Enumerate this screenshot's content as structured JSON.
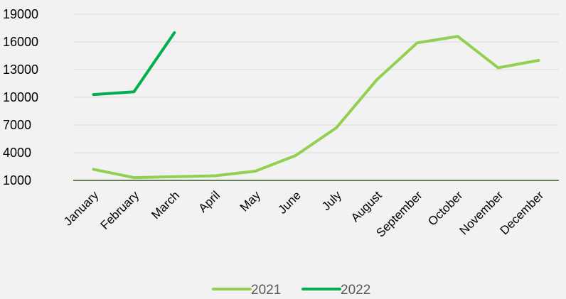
{
  "chart_data": {
    "type": "line",
    "title": "",
    "xlabel": "",
    "ylabel": "",
    "categories": [
      "January",
      "February",
      "March",
      "April",
      "May",
      "June",
      "July",
      "August",
      "September",
      "October",
      "November",
      "December"
    ],
    "yticks": [
      "19000",
      "16000",
      "13000",
      "10000",
      "7000",
      "4000",
      "1000"
    ],
    "ylim": [
      1000,
      19000
    ],
    "grid": true,
    "legend_position": "bottom",
    "series": [
      {
        "name": "2021",
        "color": "#92d050",
        "values": [
          2200,
          1300,
          1400,
          1500,
          2000,
          3700,
          6700,
          11900,
          15900,
          16600,
          13200,
          14000
        ]
      },
      {
        "name": "2022",
        "color": "#00b050",
        "values": [
          10300,
          10600,
          17000,
          null,
          null,
          null,
          null,
          null,
          null,
          null,
          null,
          null
        ]
      }
    ],
    "colors": {
      "background": "#f2f2f2",
      "gridline": "#d9d9d9",
      "baseline": "#375623"
    }
  }
}
